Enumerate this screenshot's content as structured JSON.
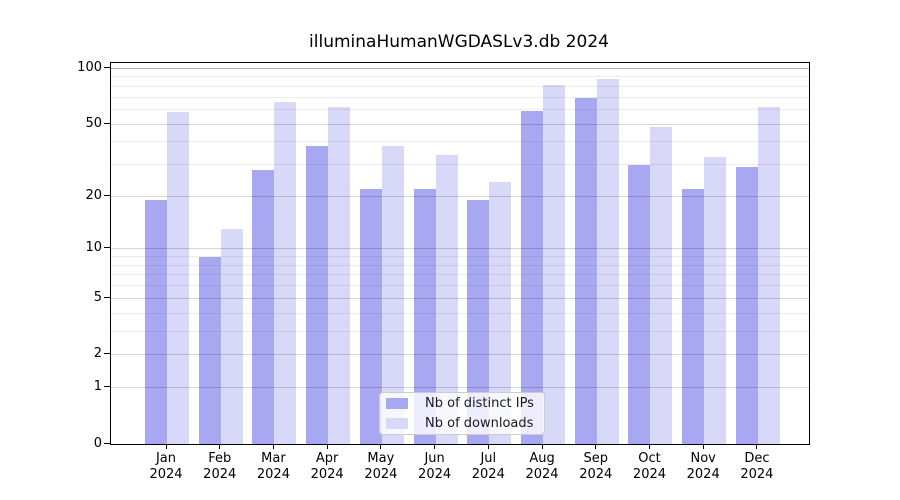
{
  "chart_data": {
    "type": "bar",
    "title": "illuminaHumanWGDASLv3.db 2024",
    "x_categories": [
      "Jan",
      "Feb",
      "Mar",
      "Apr",
      "May",
      "Jun",
      "Jul",
      "Aug",
      "Sep",
      "Oct",
      "Nov",
      "Dec"
    ],
    "x_year": "2024",
    "series": [
      {
        "name": "Nb of distinct IPs",
        "color": "#a7a7f2",
        "values": [
          19,
          9,
          28,
          38,
          22,
          22,
          19,
          59,
          69,
          30,
          22,
          29
        ]
      },
      {
        "name": "Nb of downloads",
        "color": "#d8d8f8",
        "values": [
          58,
          13,
          66,
          62,
          38,
          34,
          24,
          81,
          88,
          48,
          33,
          62
        ]
      }
    ],
    "yscale": "log10(1+value)",
    "yticks": [
      0,
      1,
      2,
      5,
      10,
      20,
      50,
      100
    ],
    "minor_gridlines": [
      3,
      4,
      6,
      7,
      8,
      9,
      30,
      40,
      60,
      70,
      80,
      90
    ],
    "ylim": [
      0,
      107
    ],
    "grid": "horizontal",
    "legend_position": "inside-bottom-center",
    "grid_major_color": "rgba(0,0,0,0.16)",
    "grid_minor_color": "rgba(0,0,0,0.07)",
    "grid_top_color": "rgba(0,0,0,0.30)"
  }
}
